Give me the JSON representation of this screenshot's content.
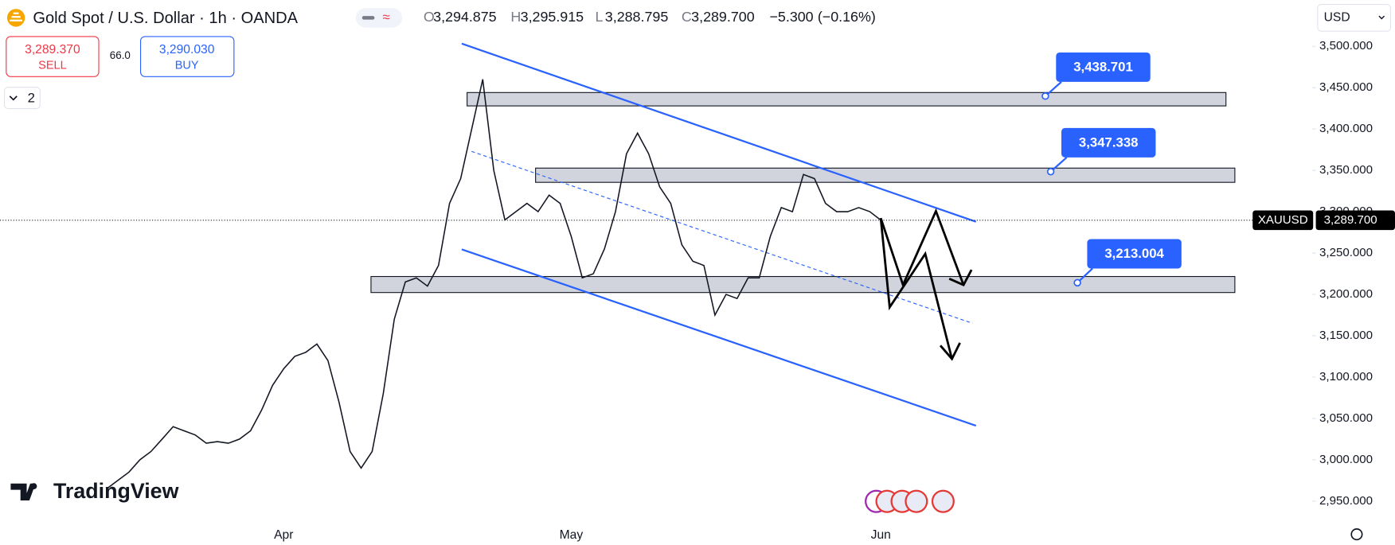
{
  "header": {
    "title": "Gold Spot / U.S. Dollar · 1h · OANDA",
    "ohlc": [
      {
        "name": "O",
        "value": {
          "value": 3294.875,
          "label": "3,294.875"
        }
      },
      {
        "name": "H",
        "value": {
          "value": 3295.915,
          "label": "3,295.915"
        }
      },
      {
        "name": "L",
        "value": {
          "value": 3288.795,
          "label": "3,288.795"
        }
      },
      {
        "name": "C",
        "value": {
          "value": 3289.7,
          "label": "3,289.700"
        }
      }
    ],
    "change": {
      "value": -5.3,
      "label": "−5.300"
    },
    "change_pct": {
      "value": -0.16,
      "label": "(−0.16%)"
    }
  },
  "trade": {
    "sell": {
      "price": {
        "value": 3289.37,
        "label": "3,289.370"
      },
      "label": "SELL"
    },
    "spread": {
      "value": 66,
      "label": "66.0"
    },
    "buy": {
      "price": {
        "value": 3290.03,
        "label": "3,290.030"
      },
      "label": "BUY"
    }
  },
  "indicators_count": 2,
  "currency": "USD",
  "branding": "TradingView",
  "chart_data": {
    "type": "line",
    "categories": [
      null,
      null,
      null,
      null,
      null,
      null,
      null,
      null,
      null,
      null,
      null,
      null,
      null,
      null,
      null,
      null,
      "Apr",
      null,
      null,
      null,
      null,
      null,
      null,
      null,
      null,
      null,
      null,
      null,
      null,
      null,
      null,
      null,
      null,
      null,
      null,
      null,
      null,
      null,
      null,
      null,
      null,
      null,
      "May",
      null,
      null,
      null,
      null,
      null,
      null,
      null,
      null,
      null,
      null,
      null,
      null,
      null,
      null,
      null,
      null,
      null,
      null,
      null,
      null,
      null,
      null,
      null,
      null,
      null,
      null,
      null,
      "Jun"
    ],
    "series": [
      {
        "name": "XAUUSD",
        "color": "#131722",
        "values": [
          2965,
          2975,
          2985,
          3000,
          3010,
          3025,
          3040,
          3035,
          3030,
          3020,
          3022,
          3020,
          3025,
          3035,
          3060,
          3090,
          3110,
          3125,
          3130,
          3140,
          3120,
          3070,
          3010,
          2990,
          3010,
          3080,
          3170,
          3215,
          3220,
          3210,
          3235,
          3310,
          3340,
          3400,
          3460,
          3350,
          3290,
          3300,
          3310,
          3300,
          3320,
          3310,
          3270,
          3220,
          3225,
          3255,
          3300,
          3370,
          3395,
          3370,
          3330,
          3310,
          3260,
          3240,
          3235,
          3175,
          3200,
          3195,
          3220,
          3220,
          3270,
          3305,
          3300,
          3345,
          3340,
          3310,
          3300,
          3300,
          3305,
          3300,
          3289.7
        ]
      }
    ],
    "ylim": [
      2926,
      3556
    ],
    "yticks": [
      {
        "value": 2950,
        "label": "2,950.000"
      },
      {
        "value": 3000,
        "label": "3,000.000"
      },
      {
        "value": 3050,
        "label": "3,050.000"
      },
      {
        "value": 3100,
        "label": "3,100.000"
      },
      {
        "value": 3150,
        "label": "3,150.000"
      },
      {
        "value": 3200,
        "label": "3,200.000"
      },
      {
        "value": 3250,
        "label": "3,250.000"
      },
      {
        "value": 3300,
        "label": "3,300.000"
      },
      {
        "value": 3350,
        "label": "3,350.000"
      },
      {
        "value": 3400,
        "label": "3,400.000"
      },
      {
        "value": 3450,
        "label": "3,450.000"
      },
      {
        "value": 3500,
        "label": "3,500.000"
      }
    ],
    "grid": false,
    "last_price": {
      "value": 3289.7,
      "label": "3,289.700"
    },
    "annotations": [
      {
        "value": 3438.701,
        "label": "3,438.701"
      },
      {
        "value": 3347.338,
        "label": "3,347.338"
      },
      {
        "value": 3213.004,
        "label": "3,213.004"
      }
    ]
  }
}
